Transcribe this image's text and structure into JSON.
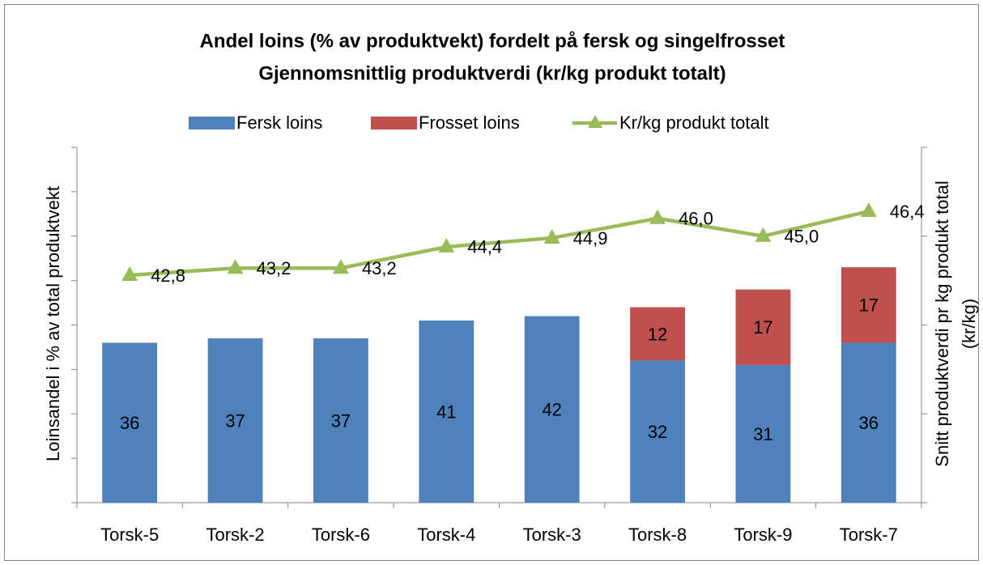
{
  "chart_data": {
    "type": "bar",
    "title": [
      "Andel loins (% av produktvekt) fordelt på fersk og singelfrosset",
      "Gjennomsnittlig produktverdi (kr/kg produkt totalt)"
    ],
    "ylabel": "Loinsandel i % av total produktvekt",
    "y2label": [
      "Snitt produktverdi pr kg produkt total",
      "(kr/kg)"
    ],
    "categories": [
      "Torsk-5",
      "Torsk-2",
      "Torsk-6",
      "Torsk-4",
      "Torsk-3",
      "Torsk-8",
      "Torsk-9",
      "Torsk-7"
    ],
    "series": [
      {
        "name": "Fersk loins",
        "color": "#4f81bd",
        "values": [
          36,
          37,
          37,
          41,
          42,
          32,
          31,
          36
        ]
      },
      {
        "name": "Frosset loins",
        "color": "#c0504d",
        "values": [
          null,
          null,
          null,
          null,
          null,
          12,
          17,
          17
        ]
      },
      {
        "name": "Kr/kg produkt totalt",
        "color": "#9bbb59",
        "type": "line",
        "axis": "y2",
        "values": [
          42.8,
          43.2,
          43.2,
          44.4,
          44.9,
          46.0,
          45.0,
          46.4
        ],
        "value_labels": [
          "42,8",
          "43,2",
          "43,2",
          "44,4",
          "44,9",
          "46,0",
          "45,0",
          "46,4"
        ]
      }
    ],
    "stacked": true,
    "ylim": [
      0,
      80
    ],
    "yticks": [
      0,
      10,
      20,
      30,
      40,
      50,
      60,
      70,
      80
    ],
    "y2lim": [
      30,
      50
    ],
    "y2ticks": [
      30,
      35,
      40,
      45,
      50
    ],
    "legend": "top"
  }
}
